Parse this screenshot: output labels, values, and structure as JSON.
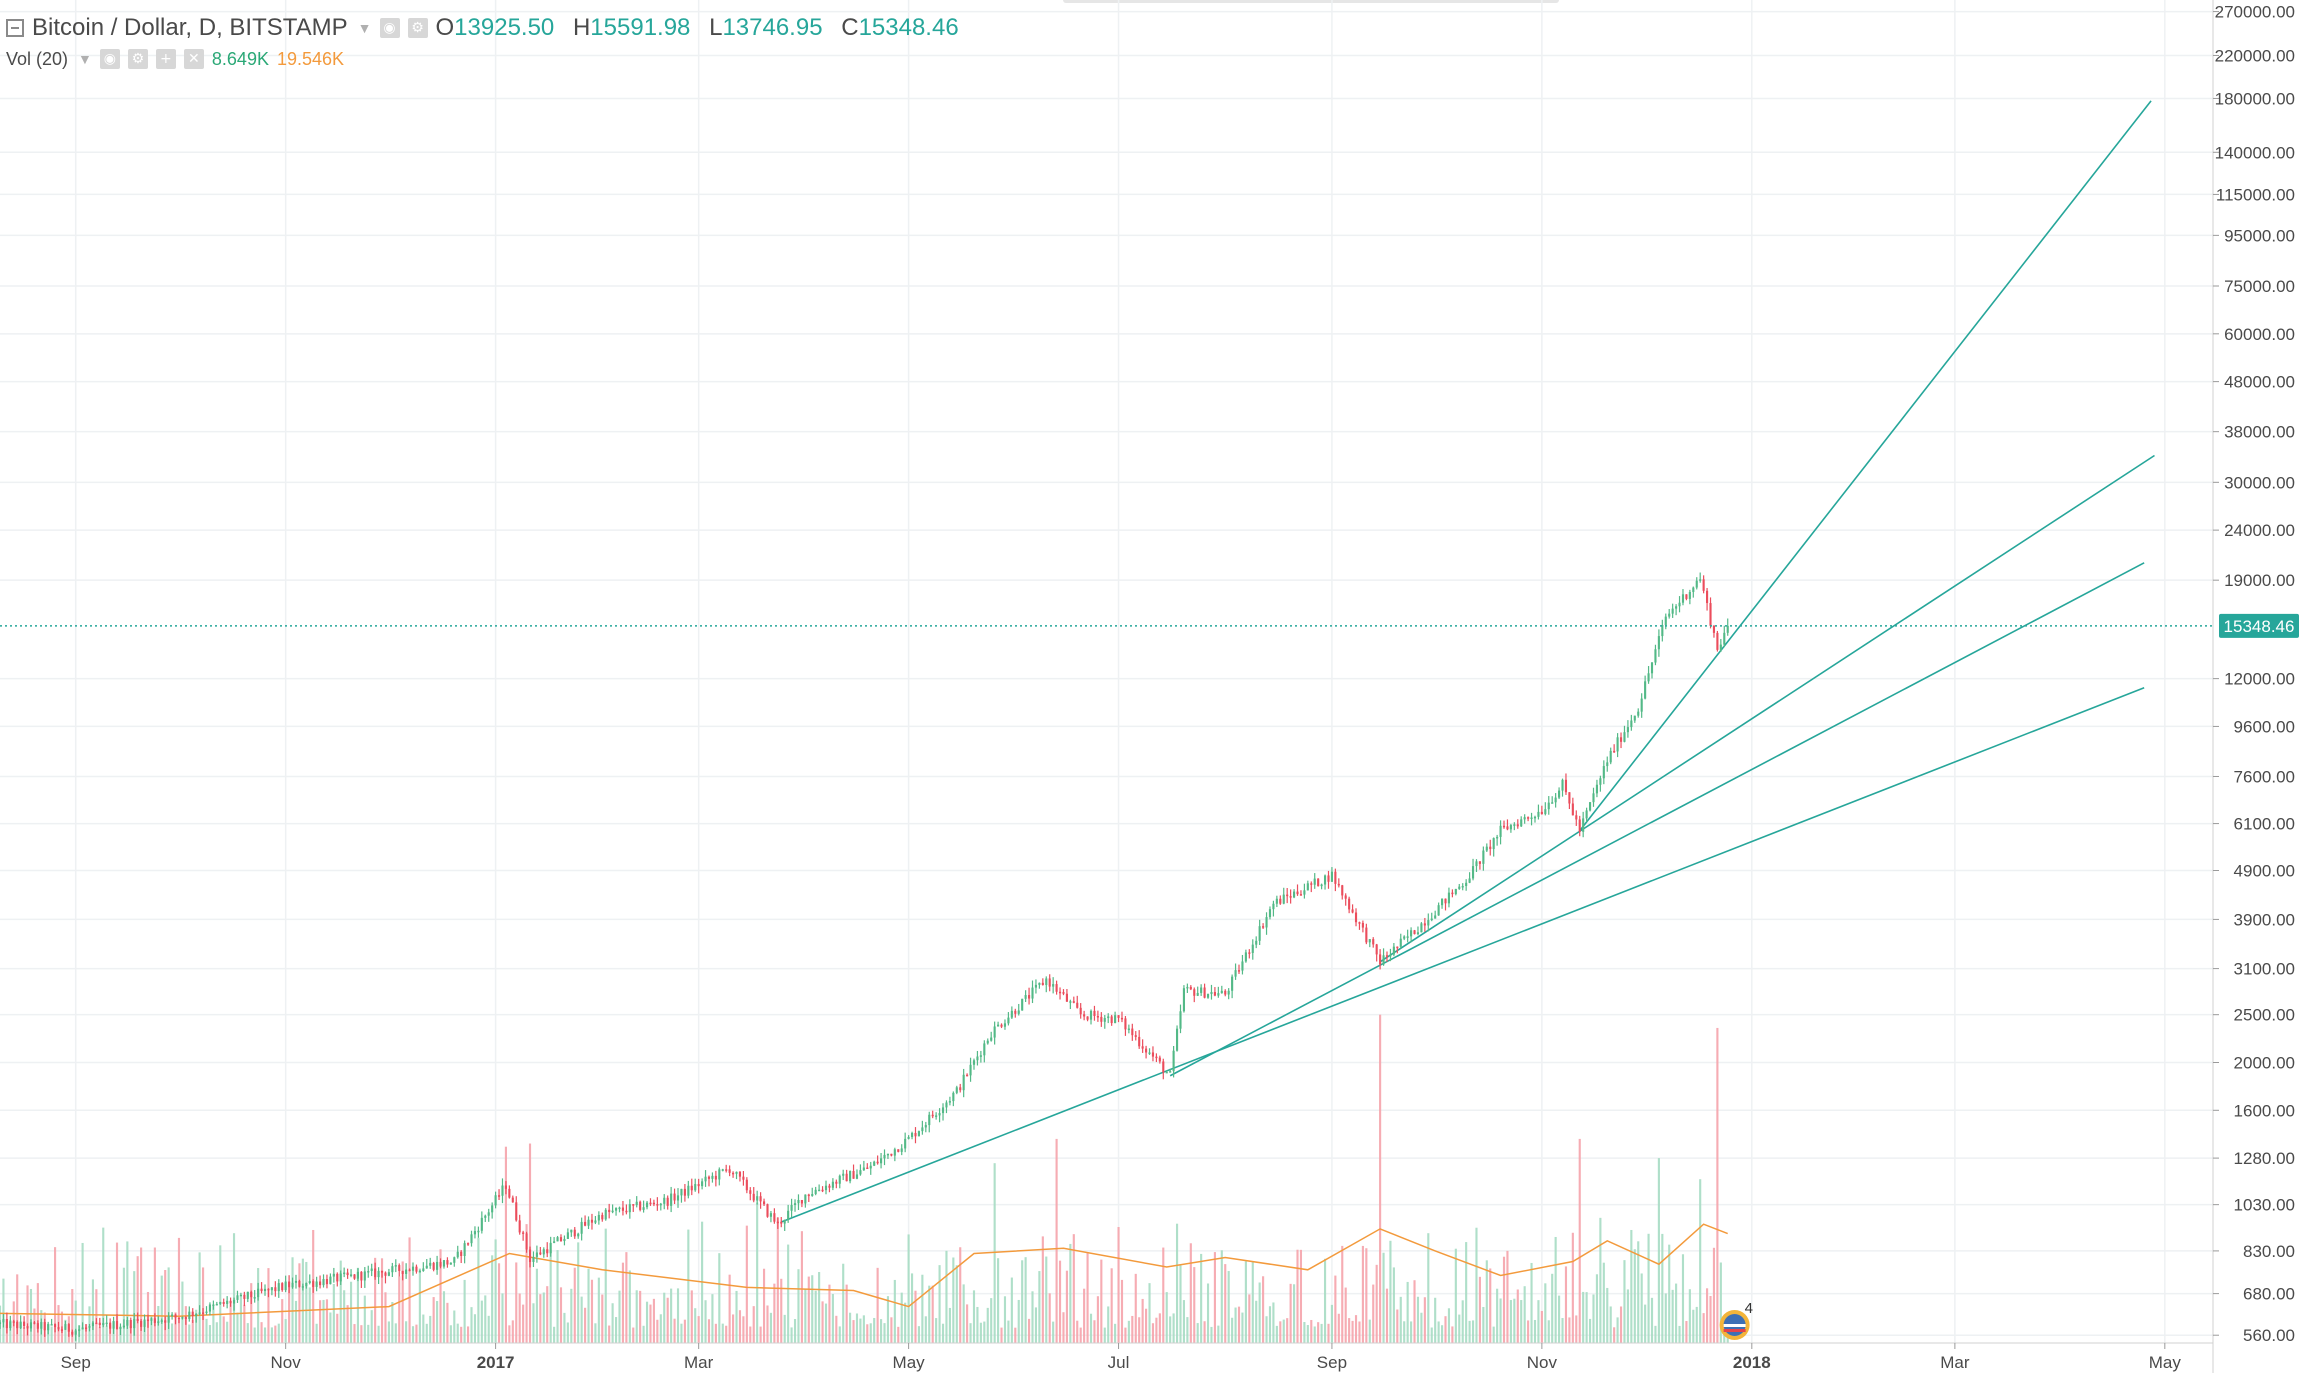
{
  "legend": {
    "title": "Bitcoin / Dollar, D, BITSTAMP",
    "open_label": "O",
    "open": "13925.50",
    "high_label": "H",
    "high": "15591.98",
    "low_label": "L",
    "low": "13746.95",
    "close_label": "C",
    "close": "15348.46",
    "volume_title": "Vol (20)",
    "volume_value": "8.649K",
    "volume_ma": "19.546K"
  },
  "colors": {
    "up": "#53b987",
    "down": "#eb4d5c",
    "vol_up": "#a6dcc3",
    "vol_down": "#f5a3ab",
    "vol_ma": "#f39a3c",
    "fan_line": "#26a69a",
    "grid": "#eef1f3",
    "axis_text": "#4a4a4a",
    "last_price_bg": "#26a69a"
  },
  "chart_data": {
    "type": "candlestick",
    "title": "Bitcoin / Dollar, D, BITSTAMP",
    "y_scale": "log",
    "ylim": [
      540,
      285000
    ],
    "x_range": [
      "2016-08-10",
      "2018-05-15"
    ],
    "y_tick_labels": [
      "270000.00",
      "220000.00",
      "180000.00",
      "140000.00",
      "115000.00",
      "95000.00",
      "75000.00",
      "60000.00",
      "48000.00",
      "38000.00",
      "30000.00",
      "24000.00",
      "19000.00",
      "12000.00",
      "9600.00",
      "7600.00",
      "6100.00",
      "4900.00",
      "3900.00",
      "3100.00",
      "2500.00",
      "2000.00",
      "1600.00",
      "1280.00",
      "1030.00",
      "830.00",
      "680.00",
      "560.00"
    ],
    "x_tick_labels": [
      {
        "label": "Sep",
        "date": "2016-09-01",
        "bold": false
      },
      {
        "label": "Nov",
        "date": "2016-11-01",
        "bold": false
      },
      {
        "label": "2017",
        "date": "2017-01-01",
        "bold": true
      },
      {
        "label": "Mar",
        "date": "2017-03-01",
        "bold": false
      },
      {
        "label": "May",
        "date": "2017-05-01",
        "bold": false
      },
      {
        "label": "Jul",
        "date": "2017-07-01",
        "bold": false
      },
      {
        "label": "Sep",
        "date": "2017-09-01",
        "bold": false
      },
      {
        "label": "Nov",
        "date": "2017-11-01",
        "bold": false
      },
      {
        "label": "2018",
        "date": "2018-01-01",
        "bold": true
      },
      {
        "label": "Mar",
        "date": "2018-03-01",
        "bold": false
      },
      {
        "label": "May",
        "date": "2018-05-01",
        "bold": false
      }
    ],
    "last_price": 15348.46,
    "last_price_label": "15348.46",
    "price_path": [
      [
        "2016-08-10",
        590
      ],
      [
        "2016-09-01",
        575
      ],
      [
        "2016-10-01",
        610
      ],
      [
        "2016-11-01",
        705
      ],
      [
        "2016-12-01",
        755
      ],
      [
        "2016-12-20",
        790
      ],
      [
        "2017-01-04",
        1130
      ],
      [
        "2017-01-11",
        800
      ],
      [
        "2017-02-01",
        985
      ],
      [
        "2017-02-20",
        1050
      ],
      [
        "2017-03-10",
        1220
      ],
      [
        "2017-03-24",
        940
      ],
      [
        "2017-04-01",
        1080
      ],
      [
        "2017-04-20",
        1230
      ],
      [
        "2017-05-01",
        1400
      ],
      [
        "2017-05-15",
        1750
      ],
      [
        "2017-05-25",
        2300
      ],
      [
        "2017-06-10",
        2950
      ],
      [
        "2017-06-20",
        2500
      ],
      [
        "2017-07-01",
        2450
      ],
      [
        "2017-07-16",
        1880
      ],
      [
        "2017-07-20",
        2800
      ],
      [
        "2017-08-01",
        2750
      ],
      [
        "2017-08-15",
        4200
      ],
      [
        "2017-09-01",
        4800
      ],
      [
        "2017-09-15",
        3200
      ],
      [
        "2017-09-25",
        3700
      ],
      [
        "2017-10-10",
        4700
      ],
      [
        "2017-10-20",
        5900
      ],
      [
        "2017-11-01",
        6500
      ],
      [
        "2017-11-07",
        7300
      ],
      [
        "2017-11-12",
        5900
      ],
      [
        "2017-11-20",
        8200
      ],
      [
        "2017-11-29",
        10500
      ],
      [
        "2017-12-07",
        16000
      ],
      [
        "2017-12-17",
        19200
      ],
      [
        "2017-12-22",
        13800
      ],
      [
        "2017-12-25",
        15348.46
      ]
    ],
    "volume_ma_path": [
      [
        "2016-08-10",
        620
      ],
      [
        "2016-10-01",
        612
      ],
      [
        "2016-12-01",
        640
      ],
      [
        "2017-01-05",
        820
      ],
      [
        "2017-02-01",
        760
      ],
      [
        "2017-03-15",
        700
      ],
      [
        "2017-04-15",
        690
      ],
      [
        "2017-05-01",
        640
      ],
      [
        "2017-05-20",
        820
      ],
      [
        "2017-06-15",
        840
      ],
      [
        "2017-07-15",
        770
      ],
      [
        "2017-08-01",
        805
      ],
      [
        "2017-08-25",
        760
      ],
      [
        "2017-09-15",
        920
      ],
      [
        "2017-10-01",
        830
      ],
      [
        "2017-10-20",
        740
      ],
      [
        "2017-11-10",
        790
      ],
      [
        "2017-11-20",
        870
      ],
      [
        "2017-12-05",
        780
      ],
      [
        "2017-12-18",
        940
      ],
      [
        "2017-12-25",
        900
      ]
    ],
    "volume_spikes": [
      [
        "2017-01-04",
        1350
      ],
      [
        "2017-01-11",
        1370
      ],
      [
        "2017-03-18",
        1040
      ],
      [
        "2017-03-24",
        970
      ],
      [
        "2017-05-26",
        1250
      ],
      [
        "2017-06-13",
        1400
      ],
      [
        "2017-09-15",
        2500
      ],
      [
        "2017-11-12",
        1400
      ],
      [
        "2017-12-05",
        1280
      ],
      [
        "2017-12-17",
        1160
      ],
      [
        "2017-12-22",
        2350
      ]
    ],
    "fan_lines": [
      {
        "start": [
          "2017-03-25",
          950
        ],
        "end": [
          "2018-04-25",
          11500
        ]
      },
      {
        "start": [
          "2017-07-16",
          1880
        ],
        "end": [
          "2018-04-25",
          20600
        ]
      },
      {
        "start": [
          "2017-09-15",
          3200
        ],
        "end": [
          "2018-04-28",
          34000
        ]
      },
      {
        "start": [
          "2017-11-12",
          5900
        ],
        "end": [
          "2018-04-27",
          178000
        ]
      }
    ],
    "event_marker": "4"
  }
}
